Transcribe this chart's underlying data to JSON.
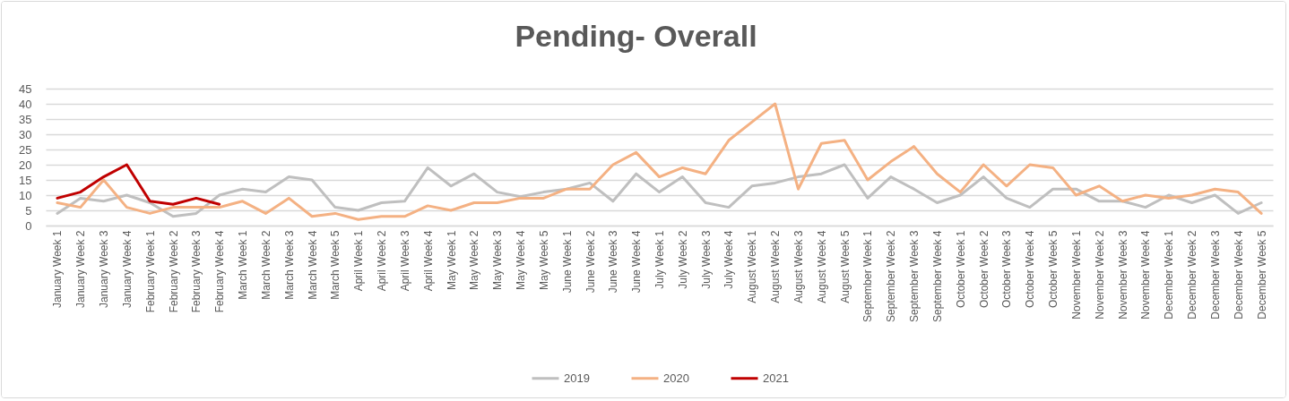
{
  "chart_data": {
    "type": "line",
    "title": "Pending- Overall",
    "categories": [
      "January Week 1",
      "January Week 2",
      "January Week 3",
      "January Week 4",
      "February Week 1",
      "February Week 2",
      "February Week 3",
      "February Week 4",
      "March Week 1",
      "March Week 2",
      "March Week 3",
      "March Week 4",
      "March Week 5",
      "April Week 1",
      "April Week 2",
      "April Week 3",
      "April Week 4",
      "May Week 1",
      "May Week 2",
      "May Week 3",
      "May Week 4",
      "May Week 5",
      "June Week 1",
      "June Week 2",
      "June Week 3",
      "June Week 4",
      "July Week 1",
      "July Week 2",
      "July Week 3",
      "July Week 4",
      "August Week 1",
      "August Week 2",
      "August Week 3",
      "August Week 4",
      "August Week 5",
      "September Week 1",
      "September Week 2",
      "September Week 3",
      "September Week 4",
      "October Week 1",
      "October Week 2",
      "October Week 3",
      "October Week 4",
      "October Week 5",
      "November Week 1",
      "November Week 2",
      "November Week 3",
      "November Week 4",
      "December Week 1",
      "December Week 2",
      "December Week 3",
      "December Week 4",
      "December Week 5"
    ],
    "series": [
      {
        "name": "2019",
        "color": "#bfbfbf",
        "values": [
          4,
          9,
          8,
          10,
          7.5,
          3,
          4,
          10,
          12,
          11,
          16,
          15,
          6,
          5,
          7.5,
          8,
          19,
          13,
          17,
          11,
          9.5,
          11,
          12,
          14,
          8,
          17,
          11,
          16,
          7.5,
          6,
          13,
          14,
          16,
          17,
          20,
          9,
          16,
          12,
          7.5,
          10,
          16,
          9,
          6,
          12,
          12,
          8,
          8,
          6,
          10,
          7.5,
          10,
          4,
          7.5
        ]
      },
      {
        "name": "2020",
        "color": "#f4b183",
        "values": [
          7.5,
          6,
          15,
          6,
          4,
          6,
          6,
          6,
          8,
          4,
          9,
          3,
          4,
          2,
          3,
          3,
          6.5,
          5,
          7.5,
          7.5,
          9,
          9,
          12,
          12,
          20,
          24,
          16,
          19,
          17,
          28,
          34,
          40,
          12,
          27,
          28,
          15,
          21,
          26,
          17,
          11,
          20,
          13,
          20,
          19,
          10,
          13,
          8,
          10,
          9,
          10,
          12,
          11,
          4
        ]
      },
      {
        "name": "2021",
        "color": "#c00000",
        "values": [
          9,
          11,
          16,
          20,
          8,
          7,
          9,
          7,
          null,
          null,
          null,
          null,
          null,
          null,
          null,
          null,
          null,
          null,
          null,
          null,
          null,
          null,
          null,
          null,
          null,
          null,
          null,
          null,
          null,
          null,
          null,
          null,
          null,
          null,
          null,
          null,
          null,
          null,
          null,
          null,
          null,
          null,
          null,
          null,
          null,
          null,
          null,
          null,
          null,
          null,
          null,
          null,
          null
        ]
      }
    ],
    "ylim": [
      0,
      45
    ],
    "yticks": [
      0,
      5,
      10,
      15,
      20,
      25,
      30,
      35,
      40,
      45
    ],
    "grid": "y",
    "legend": "bottom"
  }
}
